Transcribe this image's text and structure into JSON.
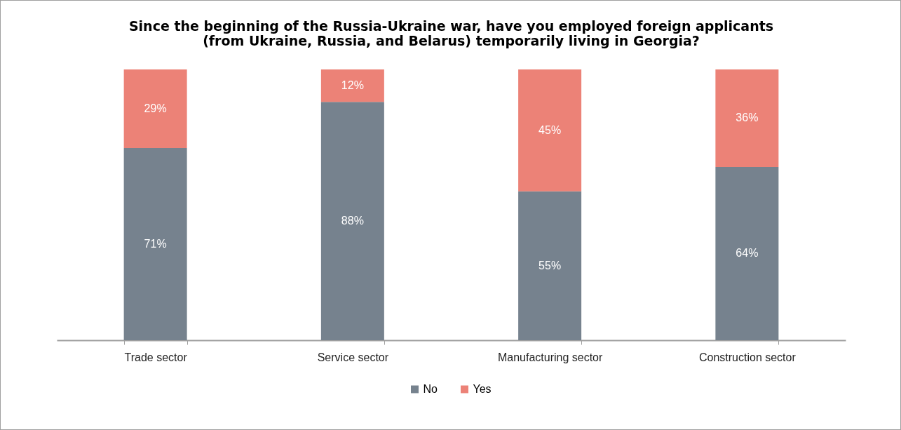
{
  "chart_data": {
    "type": "bar",
    "title": "Since the beginning of the Russia-Ukraine war, have you employed foreign applicants (from Ukraine, Russia, and Belarus) temporarily living in Georgia?",
    "categories": [
      "Trade sector",
      "Service sector",
      "Manufacturing sector",
      "Construction sector"
    ],
    "stacked": true,
    "legend": "bottom",
    "series": [
      {
        "name": "No",
        "color": "#76828e",
        "values": [
          71,
          88,
          55,
          64
        ],
        "value_labels": [
          "71%",
          "88%",
          "55%",
          "64%"
        ]
      },
      {
        "name": "Yes",
        "color": "#ec8277",
        "values": [
          29,
          12,
          45,
          36
        ],
        "value_labels": [
          "29%",
          "12%",
          "45%",
          "36%"
        ]
      }
    ]
  }
}
